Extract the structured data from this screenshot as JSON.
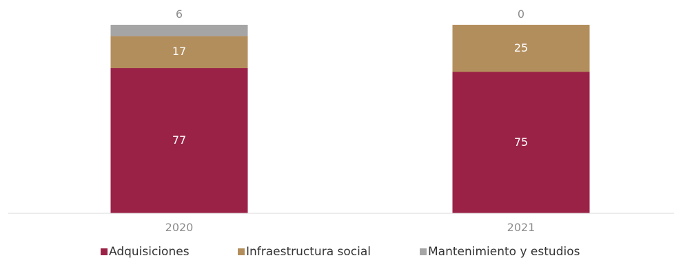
{
  "chart_data": {
    "type": "bar",
    "stacked": true,
    "percent": true,
    "categories": [
      "2020",
      "2021"
    ],
    "series": [
      {
        "name": "Adquisiciones",
        "values": [
          77,
          75
        ],
        "color": "#9b2247"
      },
      {
        "name": "Infraestructura social",
        "values": [
          17,
          25
        ],
        "color": "#b38e5d"
      },
      {
        "name": "Mantenimiento y estudios",
        "values": [
          6,
          0
        ],
        "color": "#a5a5a5"
      }
    ],
    "legend_position": "bottom",
    "grid": false,
    "ylim": [
      0,
      100
    ]
  }
}
